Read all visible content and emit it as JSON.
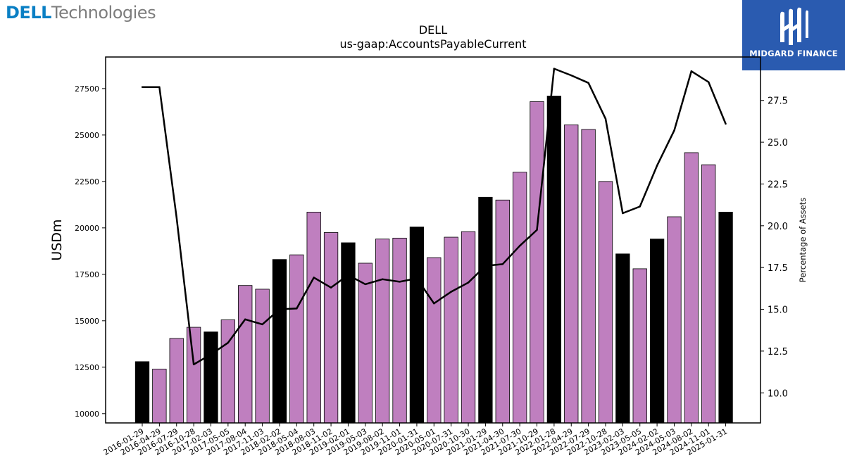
{
  "branding": {
    "dell_word": "DELL",
    "tech_word": "Technologies",
    "partner_name": "MIDGARD FINANCE",
    "partner_logo_icon": "midgard-m-icon",
    "partner_color": "#2a5bb0",
    "dell_color": "#0a7fc4"
  },
  "chart_data": {
    "type": "bar",
    "title": "DELL",
    "subtitle": "us-gaap:AccountsPayableCurrent",
    "ylabel": "USDm",
    "y2label": "Percentage of Assets",
    "ylim": [
      9500,
      29200
    ],
    "y2lim": [
      8.2,
      30.1
    ],
    "yticks": [
      10000,
      12500,
      15000,
      17500,
      20000,
      22500,
      25000,
      27500
    ],
    "y2ticks": [
      10.0,
      12.5,
      15.0,
      17.5,
      20.0,
      22.5,
      25.0,
      27.5
    ],
    "categories": [
      "2016-01-29",
      "2016-04-29",
      "2016-07-29",
      "2016-10-28",
      "2017-02-03",
      "2017-05-05",
      "2017-08-04",
      "2017-11-03",
      "2018-02-02",
      "2018-05-04",
      "2018-08-03",
      "2018-11-02",
      "2019-02-01",
      "2019-05-03",
      "2019-08-02",
      "2019-11-01",
      "2020-01-31",
      "2020-05-01",
      "2020-07-31",
      "2020-10-30",
      "2021-01-29",
      "2021-04-30",
      "2021-07-30",
      "2021-10-29",
      "2022-01-28",
      "2022-04-29",
      "2022-07-29",
      "2022-10-28",
      "2023-02-03",
      "2023-05-05",
      "2024-02-02",
      "2024-05-03",
      "2024-08-02",
      "2024-11-01",
      "2025-01-31"
    ],
    "series": [
      {
        "type": "bar",
        "values": [
          12800,
          12400,
          14050,
          14650,
          14400,
          15050,
          16900,
          16700,
          18300,
          18550,
          20850,
          19750,
          19200,
          18100,
          19400,
          19450,
          20050,
          18400,
          19500,
          19800,
          21650,
          21500,
          23000,
          26800,
          27100,
          25550,
          25300,
          22500,
          18600,
          17800,
          19400,
          20600,
          24050,
          23400,
          20850
        ],
        "highlight": [
          true,
          false,
          false,
          false,
          true,
          false,
          false,
          false,
          true,
          false,
          false,
          false,
          true,
          false,
          false,
          false,
          true,
          false,
          false,
          false,
          true,
          false,
          false,
          false,
          true,
          false,
          false,
          false,
          true,
          false,
          true,
          false,
          false,
          false,
          true
        ],
        "color": "#bf7fbf",
        "highlight_color": "#000000"
      },
      {
        "type": "line",
        "axis": "right",
        "values": [
          28.3,
          28.3,
          20.5,
          11.7,
          12.3,
          13.0,
          14.4,
          14.1,
          15.0,
          15.05,
          16.9,
          16.3,
          17.05,
          16.5,
          16.8,
          16.65,
          16.85,
          15.35,
          16.05,
          16.6,
          17.6,
          17.7,
          18.8,
          19.75,
          29.4,
          29.0,
          28.55,
          26.4,
          20.75,
          21.15,
          23.6,
          25.7,
          29.25,
          28.6,
          26.1
        ],
        "color": "#000000"
      }
    ],
    "grid": false,
    "legend": "none"
  }
}
